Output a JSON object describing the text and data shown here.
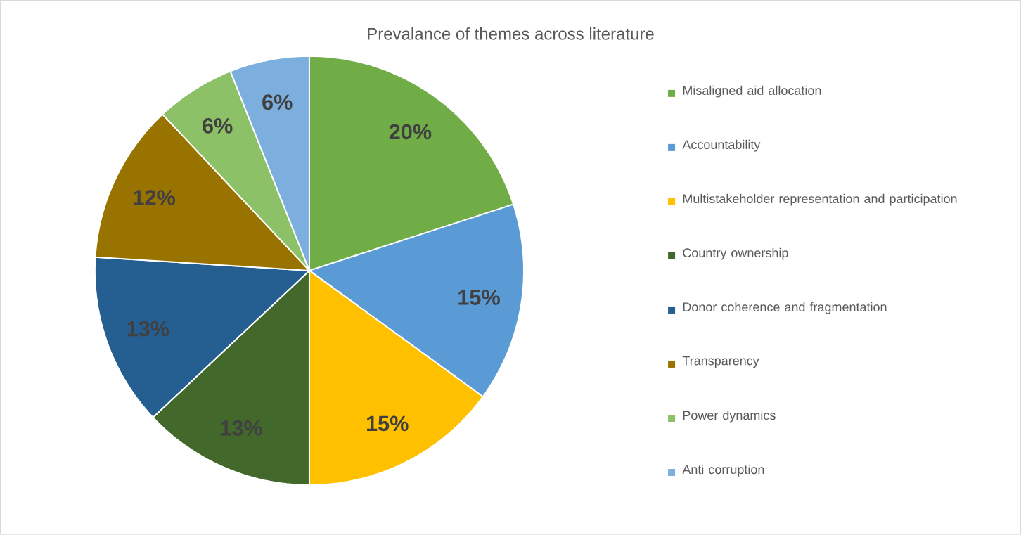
{
  "chart_data": {
    "type": "pie",
    "title": "Prevalance of themes across literature",
    "categories": [
      "Misaligned aid allocation",
      "Accountability",
      "Multistakeholder representation and participation",
      "Country ownership",
      "Donor coherence and fragmentation",
      "Transparency",
      "Power dynamics",
      "Anti corruption"
    ],
    "values": [
      20,
      15,
      15,
      13,
      13,
      12,
      6,
      6
    ],
    "value_labels": [
      "20%",
      "15%",
      "15%",
      "13%",
      "13%",
      "12%",
      "6%",
      "6%"
    ],
    "colors": [
      "#70ad47",
      "#5b9bd5",
      "#ffc000",
      "#43682b",
      "#255e91",
      "#997300",
      "#8cc168",
      "#7cafdd"
    ],
    "legend": "right"
  }
}
